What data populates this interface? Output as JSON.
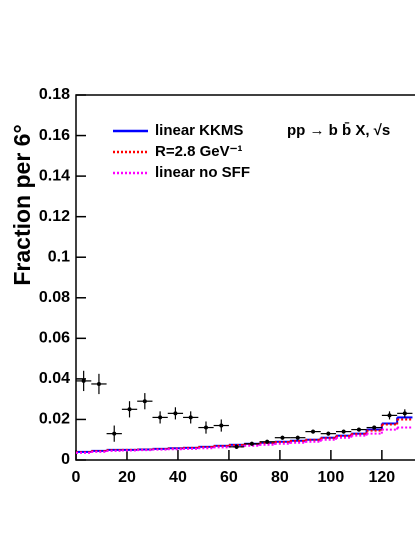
{
  "chart_data": {
    "type": "histogram",
    "y_label": "Fraction per 6°",
    "annotation": "pp → b b̄ X, √s",
    "xlim": [
      0,
      133
    ],
    "ylim": [
      0,
      0.18
    ],
    "xticks": [
      0,
      20,
      40,
      60,
      80,
      100,
      120
    ],
    "yticks": [
      0,
      0.02,
      0.04,
      0.06,
      0.08,
      0.1,
      0.12,
      0.14,
      0.16,
      0.18
    ],
    "bins": [
      0,
      6,
      12,
      18,
      24,
      30,
      36,
      42,
      48,
      54,
      60,
      66,
      72,
      78,
      84,
      90,
      96,
      102,
      108,
      114,
      120,
      126,
      132
    ],
    "series": [
      {
        "name": "linear KKMS",
        "color": "#0000ff",
        "style": "solid",
        "values": [
          0.004,
          0.0045,
          0.005,
          0.005,
          0.0052,
          0.0055,
          0.0058,
          0.006,
          0.0065,
          0.007,
          0.0075,
          0.008,
          0.0085,
          0.009,
          0.0095,
          0.01,
          0.011,
          0.012,
          0.013,
          0.015,
          0.018,
          0.021
        ]
      },
      {
        "name": "R=2.8 GeV⁻¹",
        "color": "#ff0000",
        "style": "dotted",
        "values": [
          0.0038,
          0.0044,
          0.0049,
          0.005,
          0.0051,
          0.0054,
          0.0057,
          0.006,
          0.0064,
          0.0069,
          0.0074,
          0.0079,
          0.0084,
          0.0089,
          0.0094,
          0.0099,
          0.0108,
          0.0118,
          0.0128,
          0.0145,
          0.0175,
          0.02
        ]
      },
      {
        "name": "linear no SFF",
        "color": "#ff00ff",
        "style": "dotted",
        "values": [
          0.0035,
          0.004,
          0.0045,
          0.0047,
          0.0049,
          0.0051,
          0.0053,
          0.0055,
          0.0058,
          0.0062,
          0.0066,
          0.007,
          0.0075,
          0.008,
          0.0085,
          0.009,
          0.01,
          0.011,
          0.012,
          0.013,
          0.015,
          0.016
        ]
      }
    ],
    "points": {
      "color": "#000000",
      "xerr": 3,
      "x": [
        3,
        9,
        15,
        21,
        27,
        33,
        39,
        45,
        51,
        57,
        63,
        69,
        75,
        81,
        87,
        93,
        99,
        105,
        111,
        117,
        123,
        129
      ],
      "values": [
        0.039,
        0.0375,
        0.013,
        0.025,
        0.029,
        0.021,
        0.023,
        0.021,
        0.016,
        0.017,
        0.0065,
        0.008,
        0.009,
        0.011,
        0.011,
        0.014,
        0.013,
        0.014,
        0.015,
        0.016,
        0.022,
        0.023
      ],
      "errors": [
        0.005,
        0.005,
        0.004,
        0.004,
        0.004,
        0.003,
        0.003,
        0.003,
        0.003,
        0.003,
        0.001,
        0.001,
        0.001,
        0.001,
        0.001,
        0.001,
        0.001,
        0.001,
        0.001,
        0.001,
        0.002,
        0.002
      ]
    }
  }
}
